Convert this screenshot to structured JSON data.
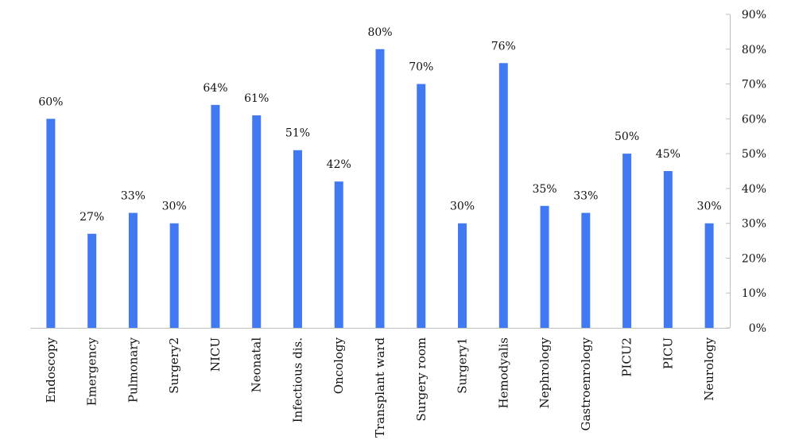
{
  "chart_data": {
    "type": "bar",
    "title": "",
    "xlabel": "",
    "ylabel": "",
    "ylim": [
      0,
      90
    ],
    "y_axis_position": "right",
    "y_ticks": [
      0,
      10,
      20,
      30,
      40,
      50,
      60,
      70,
      80,
      90
    ],
    "y_tick_labels": [
      "0%",
      "10%",
      "20%",
      "30%",
      "40%",
      "50%",
      "60%",
      "70%",
      "80%",
      "90%"
    ],
    "grid": false,
    "legend": "none",
    "bar_color": "#4179f2",
    "categories": [
      "Endoscopy",
      "Emergency",
      "Pulmonary",
      "Surgery2",
      "NICU",
      "Neonatal",
      "Infectious dis.",
      "Oncology",
      "Transplant ward",
      "Surgery room",
      "Surgery1",
      "Hemodyalis",
      "Nephrology",
      "Gastroenrology",
      "PICU2",
      "PICU",
      "Neurology"
    ],
    "values": [
      60,
      27,
      33,
      30,
      64,
      61,
      51,
      42,
      80,
      70,
      30,
      76,
      35,
      33,
      50,
      45,
      30
    ],
    "value_labels": [
      "60%",
      "27%",
      "33%",
      "30%",
      "64%",
      "61%",
      "51%",
      "42%",
      "80%",
      "70%",
      "30%",
      "76%",
      "35%",
      "33%",
      "50%",
      "45%",
      "30%"
    ]
  }
}
